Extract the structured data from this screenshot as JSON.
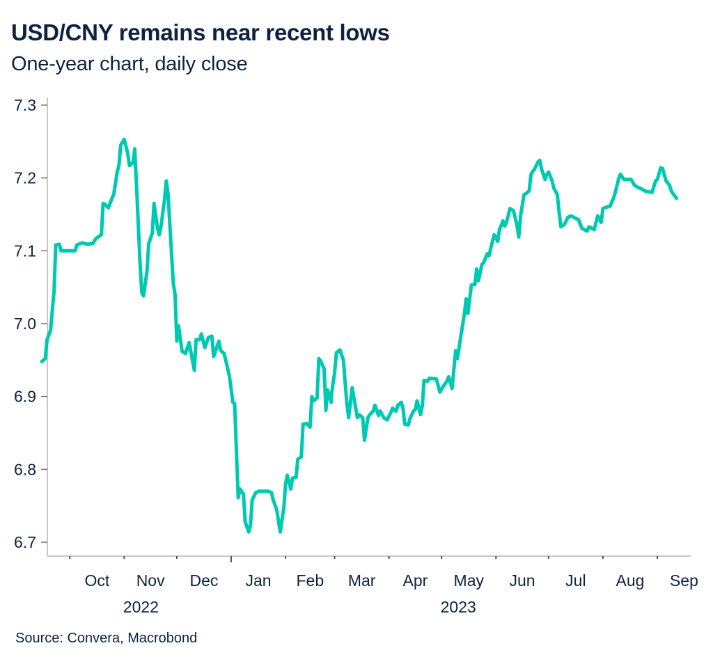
{
  "header": {
    "title": "USD/CNY remains near recent lows",
    "subtitle": "One-year chart, daily close"
  },
  "footer": {
    "source": "Source: Convera, Macrobond"
  },
  "colors": {
    "line": "#00c9b1",
    "text": "#0c2340",
    "axis": "#c8c8c8",
    "tick": "#555555"
  },
  "chart_data": {
    "type": "line",
    "title": "USD/CNY remains near recent lows",
    "subtitle": "One-year chart, daily close",
    "xlabel": "",
    "ylabel": "",
    "ylim": [
      6.68,
      7.32
    ],
    "xlim": [
      "2022-09-13",
      "2023-09-19"
    ],
    "grid": false,
    "legend": "none",
    "yticks": [
      {
        "value": 6.7,
        "label": "6.7"
      },
      {
        "value": 6.8,
        "label": "6.8"
      },
      {
        "value": 6.9,
        "label": "6.9"
      },
      {
        "value": 7.0,
        "label": "7.0"
      },
      {
        "value": 7.1,
        "label": "7.1"
      },
      {
        "value": 7.2,
        "label": "7.2"
      },
      {
        "value": 7.3,
        "label": "7.3"
      }
    ],
    "xticks": [
      {
        "date": "2022-10-01",
        "label": "Oct"
      },
      {
        "date": "2022-11-01",
        "label": "Nov"
      },
      {
        "date": "2022-12-01",
        "label": "Dec"
      },
      {
        "date": "2023-01-01",
        "label": "Jan",
        "major": true
      },
      {
        "date": "2023-02-01",
        "label": "Feb"
      },
      {
        "date": "2023-03-01",
        "label": "Mar"
      },
      {
        "date": "2023-04-01",
        "label": "Apr"
      },
      {
        "date": "2023-05-01",
        "label": "May"
      },
      {
        "date": "2023-06-01",
        "label": "Jun"
      },
      {
        "date": "2023-07-01",
        "label": "Jul"
      },
      {
        "date": "2023-08-01",
        "label": "Aug"
      },
      {
        "date": "2023-09-01",
        "label": "Sep"
      }
    ],
    "year_labels": [
      {
        "date": "2022-11-01",
        "label": "2022"
      },
      {
        "date": "2023-05-01",
        "label": "2023"
      }
    ],
    "series": [
      {
        "name": "USD/CNY",
        "points": [
          [
            "2022-09-15",
            6.948
          ],
          [
            "2022-09-17",
            6.952
          ],
          [
            "2022-09-18",
            6.978
          ],
          [
            "2022-09-20",
            6.991
          ],
          [
            "2022-09-22",
            7.044
          ],
          [
            "2022-09-23",
            7.108
          ],
          [
            "2022-09-25",
            7.109
          ],
          [
            "2022-09-26",
            7.1
          ],
          [
            "2022-10-04",
            7.1
          ],
          [
            "2022-10-05",
            7.108
          ],
          [
            "2022-10-08",
            7.111
          ],
          [
            "2022-10-11",
            7.109
          ],
          [
            "2022-10-14",
            7.11
          ],
          [
            "2022-10-16",
            7.117
          ],
          [
            "2022-10-19",
            7.122
          ],
          [
            "2022-10-20",
            7.165
          ],
          [
            "2022-10-21",
            7.164
          ],
          [
            "2022-10-23",
            7.159
          ],
          [
            "2022-10-25",
            7.172
          ],
          [
            "2022-10-26",
            7.177
          ],
          [
            "2022-10-28",
            7.208
          ],
          [
            "2022-10-29",
            7.217
          ],
          [
            "2022-10-30",
            7.245
          ],
          [
            "2022-11-01",
            7.253
          ],
          [
            "2022-11-03",
            7.234
          ],
          [
            "2022-11-04",
            7.217
          ],
          [
            "2022-11-06",
            7.221
          ],
          [
            "2022-11-07",
            7.24
          ],
          [
            "2022-11-08",
            7.191
          ],
          [
            "2022-11-10",
            7.086
          ],
          [
            "2022-11-11",
            7.043
          ],
          [
            "2022-11-12",
            7.038
          ],
          [
            "2022-11-14",
            7.072
          ],
          [
            "2022-11-15",
            7.11
          ],
          [
            "2022-11-17",
            7.124
          ],
          [
            "2022-11-18",
            7.165
          ],
          [
            "2022-11-20",
            7.131
          ],
          [
            "2022-11-21",
            7.122
          ],
          [
            "2022-11-22",
            7.134
          ],
          [
            "2022-11-24",
            7.17
          ],
          [
            "2022-11-25",
            7.196
          ],
          [
            "2022-11-26",
            7.179
          ],
          [
            "2022-11-29",
            7.055
          ],
          [
            "2022-11-30",
            7.04
          ],
          [
            "2022-12-01",
            6.976
          ],
          [
            "2022-12-02",
            6.997
          ],
          [
            "2022-12-04",
            6.962
          ],
          [
            "2022-12-06",
            6.959
          ],
          [
            "2022-12-08",
            6.974
          ],
          [
            "2022-12-11",
            6.936
          ],
          [
            "2022-12-12",
            6.978
          ],
          [
            "2022-12-14",
            6.978
          ],
          [
            "2022-12-15",
            6.986
          ],
          [
            "2022-12-17",
            6.967
          ],
          [
            "2022-12-19",
            6.981
          ],
          [
            "2022-12-21",
            6.983
          ],
          [
            "2022-12-22",
            6.955
          ],
          [
            "2022-12-25",
            6.976
          ],
          [
            "2022-12-26",
            6.963
          ],
          [
            "2022-12-28",
            6.959
          ],
          [
            "2022-12-31",
            6.928
          ],
          [
            "2023-01-02",
            6.892
          ],
          [
            "2023-01-03",
            6.89
          ],
          [
            "2023-01-05",
            6.761
          ],
          [
            "2023-01-06",
            6.773
          ],
          [
            "2023-01-08",
            6.766
          ],
          [
            "2023-01-09",
            6.728
          ],
          [
            "2023-01-11",
            6.714
          ],
          [
            "2023-01-12",
            6.723
          ],
          [
            "2023-01-13",
            6.758
          ],
          [
            "2023-01-15",
            6.768
          ],
          [
            "2023-01-17",
            6.77
          ],
          [
            "2023-01-22",
            6.77
          ],
          [
            "2023-01-24",
            6.768
          ],
          [
            "2023-01-25",
            6.758
          ],
          [
            "2023-01-27",
            6.744
          ],
          [
            "2023-01-29",
            6.714
          ],
          [
            "2023-01-31",
            6.747
          ],
          [
            "2023-02-01",
            6.78
          ],
          [
            "2023-02-02",
            6.792
          ],
          [
            "2023-02-04",
            6.773
          ],
          [
            "2023-02-05",
            6.788
          ],
          [
            "2023-02-07",
            6.789
          ],
          [
            "2023-02-08",
            6.814
          ],
          [
            "2023-02-10",
            6.817
          ],
          [
            "2023-02-11",
            6.862
          ],
          [
            "2023-02-13",
            6.863
          ],
          [
            "2023-02-15",
            6.858
          ],
          [
            "2023-02-16",
            6.9
          ],
          [
            "2023-02-17",
            6.894
          ],
          [
            "2023-02-19",
            6.898
          ],
          [
            "2023-02-20",
            6.952
          ],
          [
            "2023-02-21",
            6.949
          ],
          [
            "2023-02-23",
            6.938
          ],
          [
            "2023-02-24",
            6.881
          ],
          [
            "2023-02-25",
            6.909
          ],
          [
            "2023-02-27",
            6.892
          ],
          [
            "2023-02-27",
            6.9
          ],
          [
            "2023-03-01",
            6.933
          ],
          [
            "2023-03-02",
            6.96
          ],
          [
            "2023-03-04",
            6.964
          ],
          [
            "2023-03-06",
            6.95
          ],
          [
            "2023-03-07",
            6.919
          ],
          [
            "2023-03-08",
            6.89
          ],
          [
            "2023-03-09",
            6.871
          ],
          [
            "2023-03-11",
            6.912
          ],
          [
            "2023-03-12",
            6.898
          ],
          [
            "2023-03-14",
            6.871
          ],
          [
            "2023-03-15",
            6.875
          ],
          [
            "2023-03-17",
            6.871
          ],
          [
            "2023-03-18",
            6.84
          ],
          [
            "2023-03-20",
            6.871
          ],
          [
            "2023-03-21",
            6.875
          ],
          [
            "2023-03-23",
            6.88
          ],
          [
            "2023-03-24",
            6.888
          ],
          [
            "2023-03-26",
            6.874
          ],
          [
            "2023-03-27",
            6.88
          ],
          [
            "2023-03-29",
            6.871
          ],
          [
            "2023-03-31",
            6.868
          ],
          [
            "2023-04-02",
            6.878
          ],
          [
            "2023-04-03",
            6.884
          ],
          [
            "2023-04-05",
            6.88
          ],
          [
            "2023-04-06",
            6.888
          ],
          [
            "2023-04-08",
            6.892
          ],
          [
            "2023-04-09",
            6.884
          ],
          [
            "2023-04-10",
            6.862
          ],
          [
            "2023-04-12",
            6.861
          ],
          [
            "2023-04-13",
            6.87
          ],
          [
            "2023-04-15",
            6.88
          ],
          [
            "2023-04-16",
            6.882
          ],
          [
            "2023-04-17",
            6.894
          ],
          [
            "2023-04-19",
            6.875
          ],
          [
            "2023-04-20",
            6.887
          ],
          [
            "2023-04-21",
            6.922
          ],
          [
            "2023-04-23",
            6.921
          ],
          [
            "2023-04-24",
            6.925
          ],
          [
            "2023-04-28",
            6.924
          ],
          [
            "2023-04-30",
            6.906
          ],
          [
            "2023-05-02",
            6.914
          ],
          [
            "2023-05-04",
            6.921
          ],
          [
            "2023-05-05",
            6.927
          ],
          [
            "2023-05-07",
            6.911
          ],
          [
            "2023-05-08",
            6.938
          ],
          [
            "2023-05-09",
            6.963
          ],
          [
            "2023-05-10",
            6.952
          ],
          [
            "2023-05-12",
            6.983
          ],
          [
            "2023-05-14",
            7.014
          ],
          [
            "2023-05-15",
            7.034
          ],
          [
            "2023-05-16",
            7.014
          ],
          [
            "2023-05-18",
            7.053
          ],
          [
            "2023-05-20",
            7.054
          ],
          [
            "2023-05-21",
            7.075
          ],
          [
            "2023-05-22",
            7.059
          ],
          [
            "2023-05-24",
            7.081
          ],
          [
            "2023-05-25",
            7.084
          ],
          [
            "2023-05-27",
            7.096
          ],
          [
            "2023-05-28",
            7.093
          ],
          [
            "2023-05-30",
            7.113
          ],
          [
            "2023-05-31",
            7.122
          ],
          [
            "2023-06-02",
            7.113
          ],
          [
            "2023-06-03",
            7.129
          ],
          [
            "2023-06-05",
            7.141
          ],
          [
            "2023-06-06",
            7.134
          ],
          [
            "2023-06-07",
            7.139
          ],
          [
            "2023-06-09",
            7.158
          ],
          [
            "2023-06-11",
            7.155
          ],
          [
            "2023-06-13",
            7.135
          ],
          [
            "2023-06-14",
            7.119
          ],
          [
            "2023-06-15",
            7.148
          ],
          [
            "2023-06-17",
            7.177
          ],
          [
            "2023-06-19",
            7.18
          ],
          [
            "2023-06-20",
            7.183
          ],
          [
            "2023-06-21",
            7.205
          ],
          [
            "2023-06-22",
            7.209
          ],
          [
            "2023-06-23",
            7.212
          ],
          [
            "2023-06-25",
            7.222
          ],
          [
            "2023-06-26",
            7.224
          ],
          [
            "2023-06-27",
            7.212
          ],
          [
            "2023-06-29",
            7.198
          ],
          [
            "2023-06-30",
            7.205
          ],
          [
            "2023-07-01",
            7.208
          ],
          [
            "2023-07-03",
            7.196
          ],
          [
            "2023-07-04",
            7.186
          ],
          [
            "2023-07-06",
            7.177
          ],
          [
            "2023-07-07",
            7.153
          ],
          [
            "2023-07-08",
            7.133
          ],
          [
            "2023-07-10",
            7.136
          ],
          [
            "2023-07-12",
            7.146
          ],
          [
            "2023-07-14",
            7.148
          ],
          [
            "2023-07-16",
            7.145
          ],
          [
            "2023-07-18",
            7.143
          ],
          [
            "2023-07-20",
            7.131
          ],
          [
            "2023-07-23",
            7.127
          ],
          [
            "2023-07-24",
            7.133
          ],
          [
            "2023-07-27",
            7.129
          ],
          [
            "2023-07-29",
            7.148
          ],
          [
            "2023-07-31",
            7.139
          ],
          [
            "2023-08-01",
            7.158
          ],
          [
            "2023-08-03",
            7.16
          ],
          [
            "2023-08-05",
            7.161
          ],
          [
            "2023-08-07",
            7.172
          ],
          [
            "2023-08-08",
            7.18
          ],
          [
            "2023-08-10",
            7.199
          ],
          [
            "2023-08-11",
            7.205
          ],
          [
            "2023-08-13",
            7.198
          ],
          [
            "2023-08-17",
            7.198
          ],
          [
            "2023-08-19",
            7.19
          ],
          [
            "2023-08-21",
            7.187
          ],
          [
            "2023-08-23",
            7.185
          ],
          [
            "2023-08-25",
            7.182
          ],
          [
            "2023-08-29",
            7.18
          ],
          [
            "2023-08-31",
            7.196
          ],
          [
            "2023-09-01",
            7.198
          ],
          [
            "2023-09-03",
            7.214
          ],
          [
            "2023-09-04",
            7.213
          ],
          [
            "2023-09-06",
            7.196
          ],
          [
            "2023-09-08",
            7.19
          ],
          [
            "2023-09-09",
            7.182
          ],
          [
            "2023-09-11",
            7.175
          ],
          [
            "2023-09-12",
            7.172
          ]
        ]
      }
    ]
  }
}
